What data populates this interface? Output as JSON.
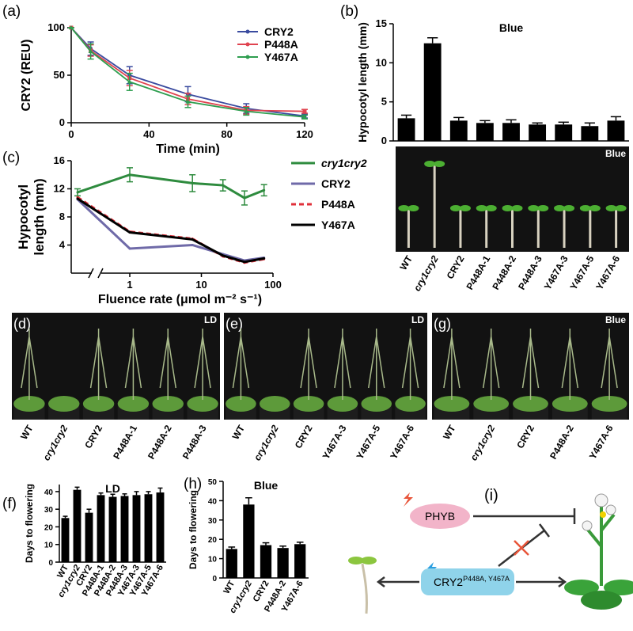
{
  "chart_data": [
    {
      "panel": "(a)",
      "type": "line",
      "xlabel": "Time (min)",
      "ylabel": "CRY2 (REU)",
      "x": [
        0,
        10,
        30,
        60,
        90,
        120
      ],
      "series": [
        {
          "name": "CRY2",
          "color": "#3a4b9f",
          "marker": "circle",
          "values": [
            100,
            78,
            50,
            30,
            15,
            7
          ],
          "errors": [
            0,
            7,
            9,
            8,
            5,
            2
          ]
        },
        {
          "name": "P448A",
          "color": "#e0434f",
          "marker": "square",
          "values": [
            100,
            76,
            47,
            25,
            13,
            12
          ],
          "errors": [
            0,
            6,
            8,
            6,
            4,
            2
          ]
        },
        {
          "name": "Y467A",
          "color": "#2e9e4f",
          "marker": "triangle",
          "values": [
            100,
            75,
            43,
            22,
            12,
            6
          ],
          "errors": [
            0,
            8,
            9,
            6,
            4,
            2
          ]
        }
      ],
      "xlim": [
        0,
        120
      ],
      "xticks": [
        0,
        40,
        80,
        120
      ],
      "ylim": [
        0,
        100
      ],
      "yticks": [
        0,
        50,
        100
      ]
    },
    {
      "panel": "(b)",
      "type": "bar",
      "title": "Blue",
      "ylabel": "Hypocotyl length (mm)",
      "categories": [
        "WT",
        "cry1cry2",
        "CRY2",
        "P448A-1",
        "P448A-2",
        "P448A-3",
        "Y467A-3",
        "Y467A-5",
        "Y467A-6"
      ],
      "values": [
        2.9,
        12.5,
        2.6,
        2.3,
        2.3,
        2.1,
        2.1,
        1.9,
        2.6
      ],
      "errors": [
        0.4,
        0.7,
        0.4,
        0.3,
        0.4,
        0.2,
        0.3,
        0.4,
        0.5
      ],
      "color": "#000000",
      "ylim": [
        0,
        15
      ],
      "yticks": [
        0,
        5,
        10,
        15
      ]
    },
    {
      "panel": "(c)",
      "type": "line",
      "xscale": "log",
      "axis_break": true,
      "xlabel": "Fluence rate (μmol m⁻² s⁻¹)",
      "ylabel": [
        "Hypocotyl",
        "length (mm)"
      ],
      "x": [
        0,
        1,
        7.5,
        20,
        40,
        75
      ],
      "series": [
        {
          "name": "cry1cry2",
          "color": "#2e8b3e",
          "values": [
            11.5,
            14,
            12.8,
            12.5,
            10.7,
            11.8
          ],
          "errors": [
            0.5,
            1,
            1.2,
            0.8,
            1,
            0.8
          ]
        },
        {
          "name": "CRY2",
          "color": "#6f6aa8",
          "values": [
            10.5,
            3.5,
            4,
            2.7,
            1.8,
            2.2
          ]
        },
        {
          "name": "P448A",
          "color": "#e0303a",
          "linestyle": "dashed",
          "values": [
            10.8,
            5.9,
            4.9,
            2.4,
            1.5,
            2
          ]
        },
        {
          "name": "Y467A",
          "color": "#000000",
          "values": [
            10.6,
            5.8,
            4.8,
            2.5,
            1.6,
            2.1
          ]
        }
      ],
      "xlim": [
        0.4,
        100
      ],
      "xticks": [
        1,
        10,
        100
      ],
      "ylim": [
        0,
        16
      ],
      "yticks": [
        4,
        8,
        12,
        16
      ]
    },
    {
      "panel": "(f)",
      "type": "bar",
      "title": "LD",
      "ylabel": "Days to flowering",
      "categories": [
        "WT",
        "cry1cry2",
        "CRY2",
        "P448A-1",
        "P448A-2",
        "P448A-3",
        "Y467A-3",
        "Y467A-5",
        "Y467A-6"
      ],
      "values": [
        25,
        41,
        28,
        38,
        37,
        37.5,
        38,
        38.5,
        39.5
      ],
      "errors": [
        1,
        1.5,
        2,
        1.2,
        1.5,
        1.2,
        2,
        1.5,
        2.5
      ],
      "color": "#000000",
      "ylim": [
        0,
        44
      ],
      "yticks": [
        0,
        10,
        20,
        30,
        40
      ]
    },
    {
      "panel": "(h)",
      "type": "bar",
      "title": "Blue",
      "ylabel": "Days to flowering",
      "categories": [
        "WT",
        "cry1cry2",
        "CRY2",
        "P448A-2",
        "Y467A-6"
      ],
      "values": [
        15,
        38,
        17,
        15.5,
        17.5
      ],
      "errors": [
        1,
        3.5,
        1.2,
        1,
        1
      ],
      "color": "#000000",
      "ylim": [
        0,
        50
      ],
      "yticks": [
        0,
        10,
        20,
        30,
        40,
        50
      ]
    }
  ],
  "photos": [
    {
      "label": "Blue"
    },
    {
      "panel": "(d)",
      "label": "LD",
      "labels": [
        "WT",
        "cry1cry2",
        "CRY2",
        "P448A-1",
        "P448A-2",
        "P448A-3"
      ]
    },
    {
      "panel": "(e)",
      "label": "LD",
      "labels": [
        "WT",
        "cry1cry2",
        "CRY2",
        "Y467A-3",
        "Y467A-5",
        "Y467A-6"
      ]
    },
    {
      "panel": "(g)",
      "label": "Blue",
      "labels": [
        "WT",
        "cry1cry2",
        "CRY2",
        "P448A-2",
        "Y467A-6"
      ]
    }
  ],
  "diagram": {
    "panel": "(i)",
    "nodes": [
      {
        "label": "PHYB"
      },
      {
        "label": "CRY2",
        "superscript": "P448A, Y467A"
      }
    ]
  }
}
